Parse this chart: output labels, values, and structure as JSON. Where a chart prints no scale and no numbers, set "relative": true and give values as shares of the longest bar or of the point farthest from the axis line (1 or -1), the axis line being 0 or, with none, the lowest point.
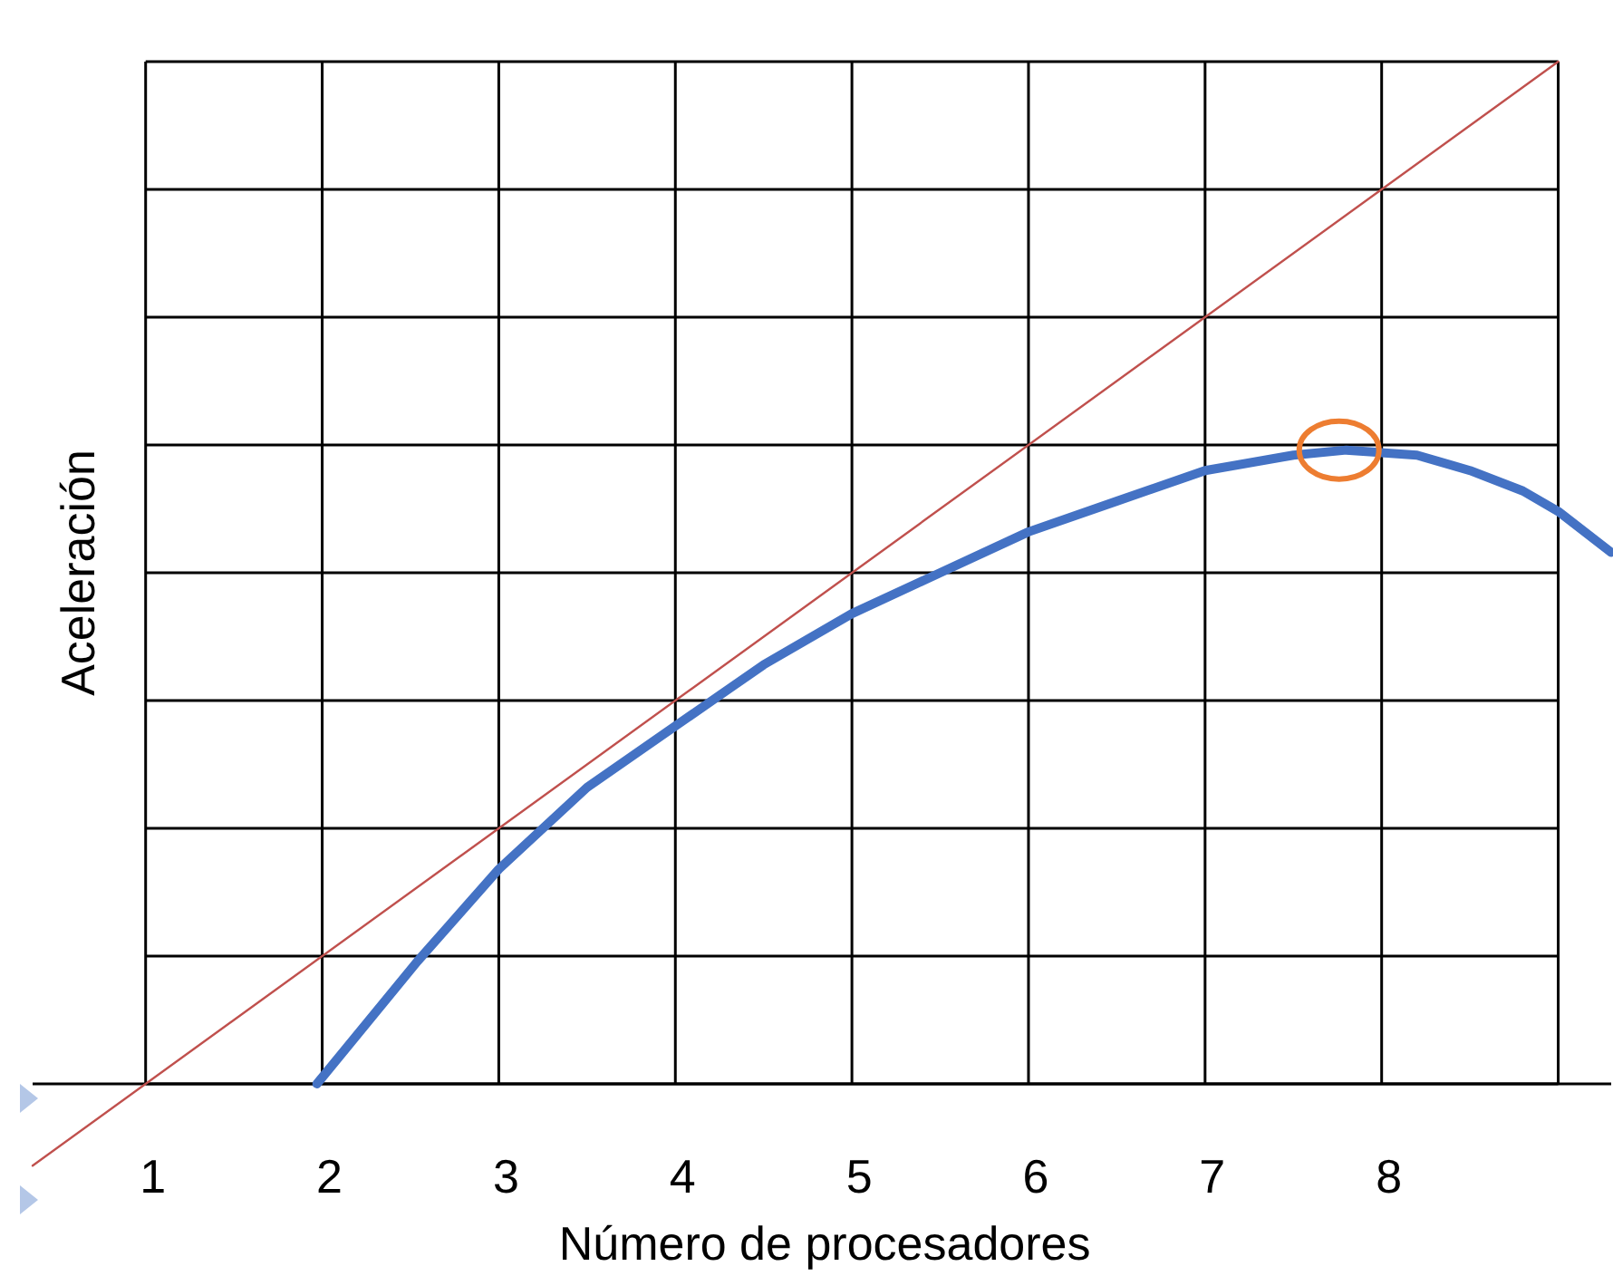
{
  "chart_data": {
    "type": "line",
    "xlabel": "Número de procesadores",
    "ylabel": "Aceleración",
    "relative": true,
    "xlim": [
      0.36,
      9.3
    ],
    "xticks": [
      1,
      2,
      3,
      4,
      5,
      6,
      7,
      8,
      {
        "value": 9,
        "label": null
      }
    ],
    "grid": true,
    "marker": "none",
    "line_style": "solid",
    "series": [
      {
        "color": "#c0504d",
        "x": [
          0.36,
          9
        ],
        "values": [
          -0.08,
          1
        ]
      },
      {
        "color": "#4472c4",
        "x": [
          1.97,
          2.54,
          3,
          3.5,
          4,
          4.5,
          5,
          5.5,
          6,
          6.5,
          7,
          7.5,
          7.8,
          8.2,
          8.5,
          8.8,
          9,
          9.3
        ],
        "values": [
          0,
          0.12,
          0.21,
          0.29,
          0.35,
          0.41,
          0.46,
          0.5,
          0.54,
          0.57,
          0.6,
          0.615,
          0.62,
          0.615,
          0.6,
          0.58,
          0.56,
          0.52
        ]
      }
    ]
  }
}
